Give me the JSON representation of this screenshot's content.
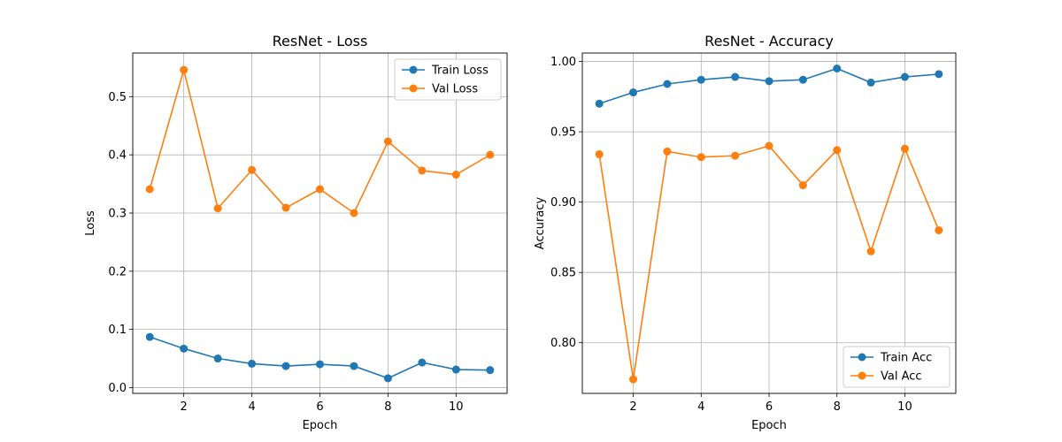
{
  "chart_data": [
    {
      "type": "line",
      "title": "ResNet - Loss",
      "xlabel": "Epoch",
      "ylabel": "Loss",
      "x": [
        1,
        2,
        3,
        4,
        5,
        6,
        7,
        8,
        9,
        10,
        11
      ],
      "xlim": [
        0.5,
        11.5
      ],
      "ylim": [
        -0.01,
        0.575
      ],
      "xticks": [
        2,
        4,
        6,
        8,
        10
      ],
      "yticks": [
        0.0,
        0.1,
        0.2,
        0.3,
        0.4,
        0.5
      ],
      "ytick_labels": [
        "0.0",
        "0.1",
        "0.2",
        "0.3",
        "0.4",
        "0.5"
      ],
      "grid": true,
      "legend_position": "top-right",
      "series": [
        {
          "name": "Train Loss",
          "color": "#1f77b4",
          "values": [
            0.087,
            0.067,
            0.05,
            0.041,
            0.037,
            0.04,
            0.037,
            0.016,
            0.043,
            0.031,
            0.03
          ]
        },
        {
          "name": "Val Loss",
          "color": "#ff7f0e",
          "values": [
            0.341,
            0.546,
            0.308,
            0.374,
            0.309,
            0.341,
            0.3,
            0.423,
            0.373,
            0.366,
            0.4
          ]
        }
      ]
    },
    {
      "type": "line",
      "title": "ResNet - Accuracy",
      "xlabel": "Epoch",
      "ylabel": "Accuracy",
      "x": [
        1,
        2,
        3,
        4,
        5,
        6,
        7,
        8,
        9,
        10,
        11
      ],
      "xlim": [
        0.5,
        11.5
      ],
      "ylim": [
        0.764,
        1.006
      ],
      "xticks": [
        2,
        4,
        6,
        8,
        10
      ],
      "yticks": [
        0.8,
        0.85,
        0.9,
        0.95,
        1.0
      ],
      "ytick_labels": [
        "0.80",
        "0.85",
        "0.90",
        "0.95",
        "1.00"
      ],
      "grid": true,
      "legend_position": "bottom-right",
      "series": [
        {
          "name": "Train Acc",
          "color": "#1f77b4",
          "values": [
            0.97,
            0.978,
            0.984,
            0.987,
            0.989,
            0.986,
            0.987,
            0.995,
            0.985,
            0.989,
            0.991
          ]
        },
        {
          "name": "Val Acc",
          "color": "#ff7f0e",
          "values": [
            0.934,
            0.774,
            0.936,
            0.932,
            0.933,
            0.94,
            0.912,
            0.937,
            0.865,
            0.938,
            0.88
          ]
        }
      ]
    }
  ]
}
